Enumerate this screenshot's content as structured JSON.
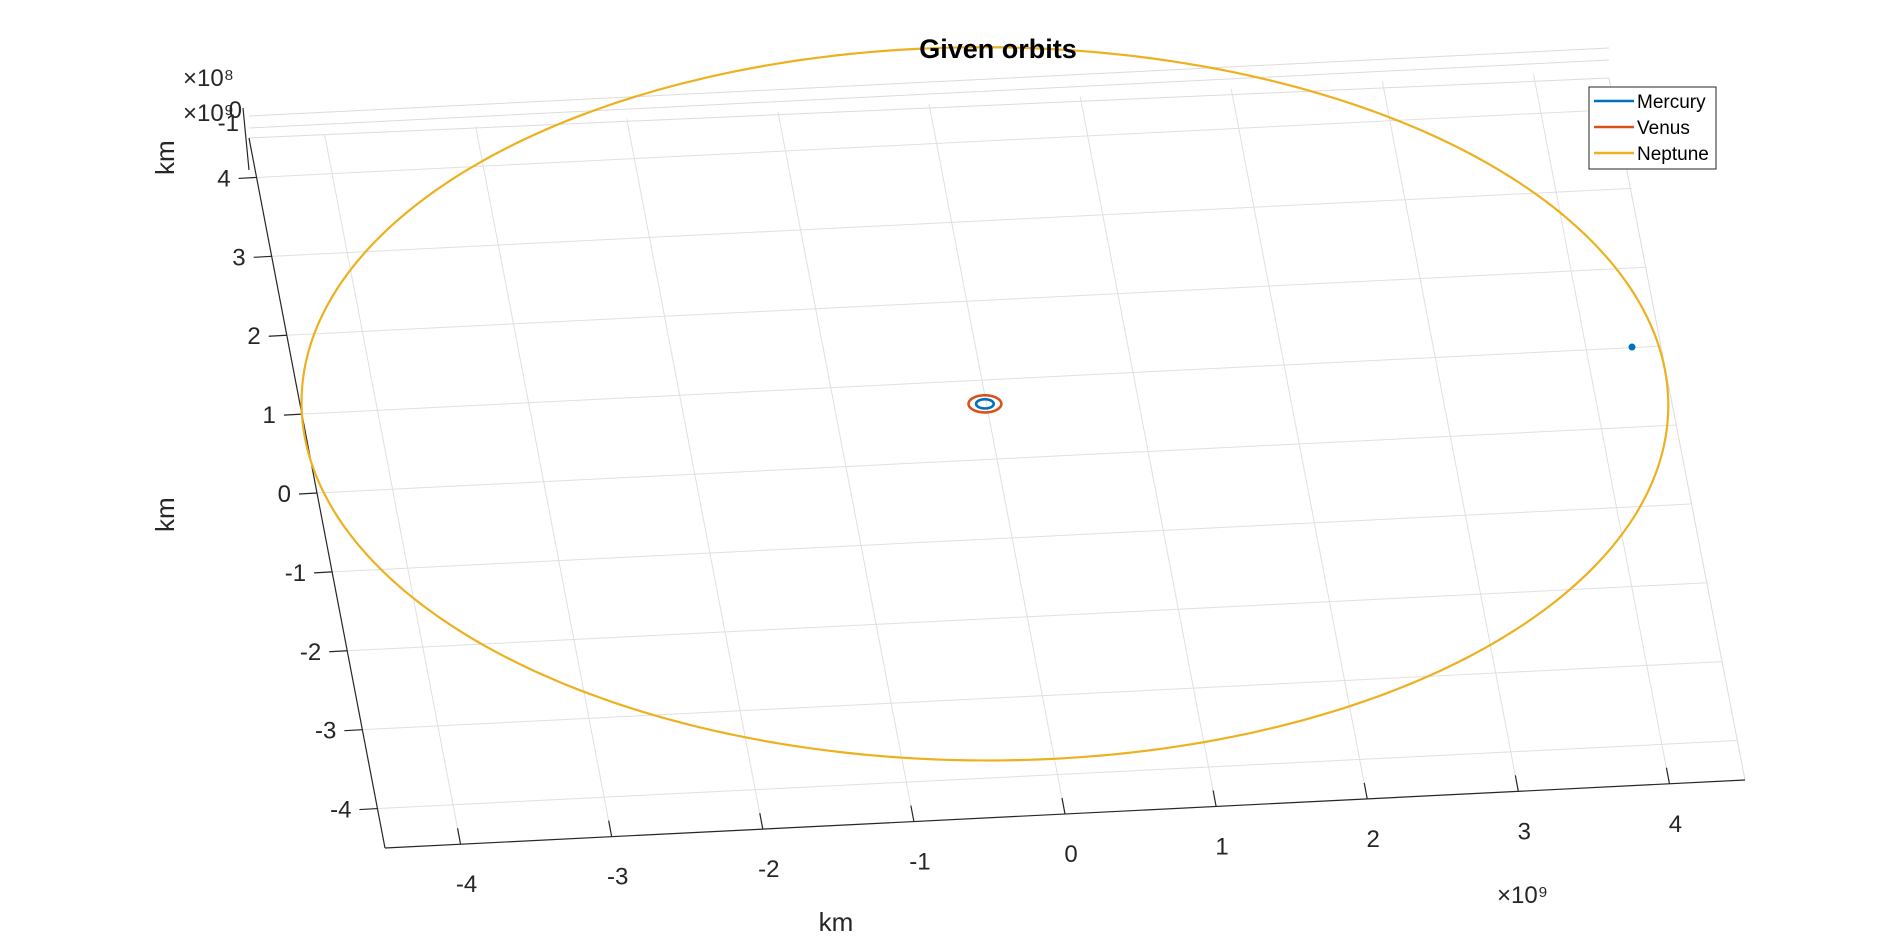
{
  "chart_data": {
    "type": "line",
    "title": "Given orbits",
    "xlabel": "km",
    "ylabel": "km",
    "zlabel": "km",
    "x_exponent": "×10⁹",
    "y_exponent": "×10⁹",
    "z_exponent": "×10⁸",
    "x_ticks": [
      "-4",
      "-3",
      "-2",
      "-1",
      "0",
      "1",
      "2",
      "3",
      "4"
    ],
    "y_ticks": [
      "-4",
      "-3",
      "-2",
      "-1",
      "0",
      "1",
      "2",
      "3",
      "4"
    ],
    "z_ticks": [
      "-1",
      "0"
    ],
    "xlim": [
      -4.5,
      4.5
    ],
    "ylim": [
      -4.5,
      4.5
    ],
    "grid": true,
    "legend_position": "top-right",
    "series": [
      {
        "name": "Mercury",
        "color": "#0072BD",
        "semi_major_axis": 0.058,
        "center": [
          -0.01,
          0.7
        ]
      },
      {
        "name": "Venus",
        "color": "#D95319",
        "semi_major_axis": 0.108,
        "center": [
          -0.01,
          0.7
        ]
      },
      {
        "name": "Neptune",
        "color": "#EDB120",
        "semi_major_axis": 4.5,
        "center": [
          -0.01,
          0.7
        ]
      }
    ],
    "marker": {
      "color": "#0072BD",
      "x": 3.7,
      "y": 2.3
    }
  }
}
